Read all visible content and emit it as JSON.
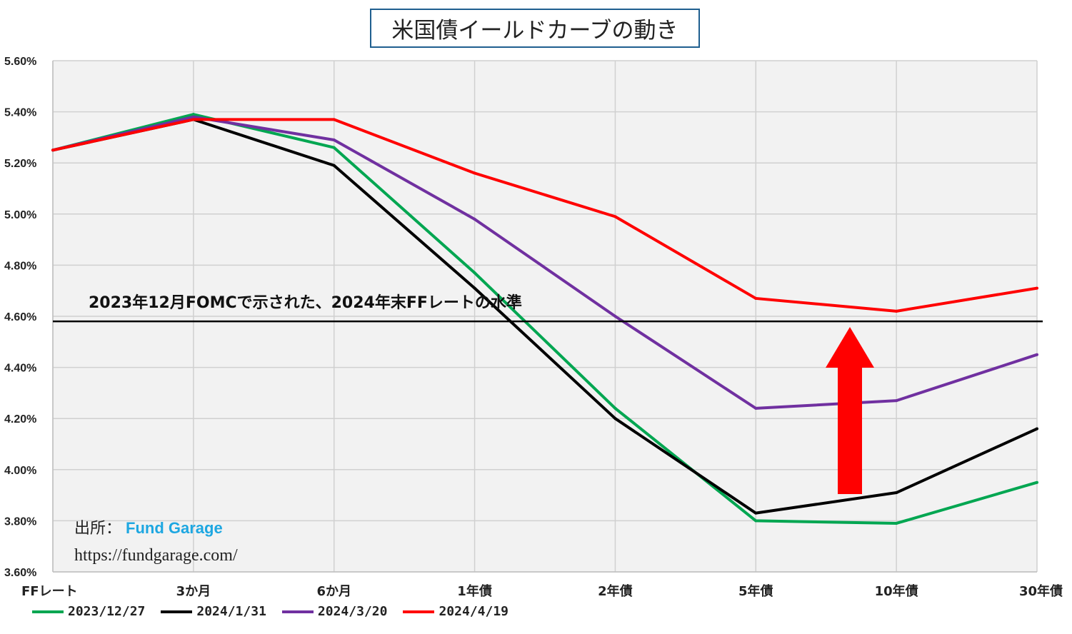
{
  "chart_data": {
    "type": "line",
    "title": "米国債イールドカーブの動き",
    "categories": [
      "FFレート",
      "3か月",
      "6か月",
      "1年債",
      "2年債",
      "5年債",
      "10年債",
      "30年債"
    ],
    "ylim": [
      3.6,
      5.6
    ],
    "yticks": [
      "3.60%",
      "3.80%",
      "4.00%",
      "4.20%",
      "4.40%",
      "4.60%",
      "4.80%",
      "5.00%",
      "5.20%",
      "5.40%",
      "5.60%"
    ],
    "grid": true,
    "legend": "bottom",
    "series": [
      {
        "name": "2023/12/27",
        "color": "#00a651",
        "values": [
          5.25,
          5.39,
          5.26,
          4.77,
          4.24,
          3.8,
          3.79,
          3.95
        ]
      },
      {
        "name": "2024/1/31",
        "color": "#000000",
        "values": [
          5.25,
          5.37,
          5.19,
          4.71,
          4.2,
          3.83,
          3.91,
          4.16
        ]
      },
      {
        "name": "2024/3/20",
        "color": "#7030a0",
        "values": [
          5.25,
          5.38,
          5.29,
          4.98,
          4.6,
          4.24,
          4.27,
          4.45
        ]
      },
      {
        "name": "2024/4/19",
        "color": "#ff0000",
        "values": [
          5.25,
          5.37,
          5.37,
          5.16,
          4.99,
          4.67,
          4.62,
          4.71
        ]
      }
    ],
    "reference_line": {
      "value": 4.58,
      "label": "2023年12月FOMCで示された、2024年末FFレートの水準"
    },
    "annotations": [
      "出所：",
      "Fund Garage",
      "https://fundgarage.com/"
    ]
  }
}
